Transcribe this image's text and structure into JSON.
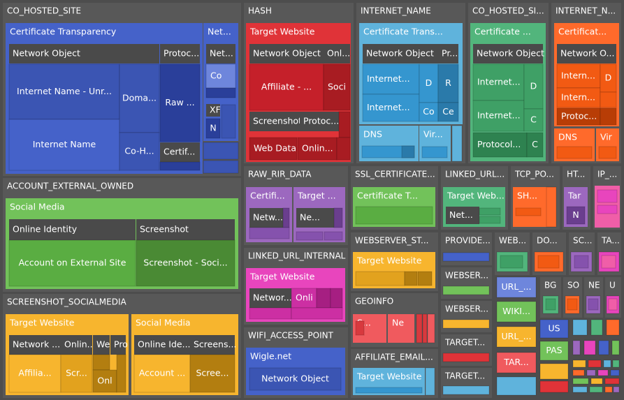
{
  "chart_data": {
    "type": "treemap",
    "colors": {
      "background": "#4d4d4d",
      "group": "#585858",
      "header": "#4a4a4a",
      "blue": "#4562c9",
      "blue_mid": "#3b55b3",
      "blue_dark": "#2a3f9a",
      "blue_light": "#6e86dc",
      "red": "#e03338",
      "red_mid": "#c5202a",
      "red_dark": "#a81c22",
      "cyan": "#5fb3dc",
      "cyan_mid": "#3596cf",
      "cyan_dark": "#2a7aaa",
      "green": "#52b57c",
      "green_mid": "#3fa066",
      "green_dark": "#2e8250",
      "orange": "#ff6a2b",
      "orange_mid": "#f25a13",
      "orange_dark": "#b83d06",
      "purple": "#9c68bf",
      "purple_mid": "#8552ad",
      "purple_dark": "#6a3e8e",
      "lime": "#72c25a",
      "lime_mid": "#5aad42",
      "lime_dark": "#4a8a34",
      "gold": "#f7b52e",
      "gold_mid": "#e2a21e",
      "gold_dark": "#b37e10",
      "magenta": "#e845bd",
      "magenta_mid": "#cc2fa3",
      "magenta_dark": "#a61f82",
      "salmon": "#f05a5e",
      "salmon_mid": "#d8393e",
      "pink": "#f05ea8",
      "text": "#ffffff"
    },
    "groups": [
      {
        "name": "CO_HOSTED_SITE",
        "children": [
          {
            "name": "Certificate Transparency",
            "children": [
              {
                "name": "Network Object",
                "children": [
                  {
                    "name": "Internet Name - Unr...",
                    "value": 48
                  },
                  {
                    "name": "Internet Name",
                    "value": 40
                  },
                  {
                    "name": "Doma...",
                    "value": 14
                  },
                  {
                    "name": "Co-H...",
                    "value": 11
                  }
                ]
              },
              {
                "name": "Protoc...",
                "children": [
                  {
                    "name": "Raw ...",
                    "value": 14
                  },
                  {
                    "name": "Certif...",
                    "value": 4
                  }
                ]
              }
            ]
          },
          {
            "name": "Net...",
            "children": [
              {
                "name": "Net...",
                "children": [
                  {
                    "name": "Co",
                    "value": 4
                  }
                ]
              },
              {
                "name": "XF",
                "children": [
                  {
                    "name": "N",
                    "value": 2
                  }
                ]
              }
            ]
          }
        ]
      },
      {
        "name": "HASH",
        "children": [
          {
            "name": "Target Website",
            "children": [
              {
                "name": "Network Object",
                "children": [
                  {
                    "name": "Affiliate - ...",
                    "value": 18
                  }
                ]
              },
              {
                "name": "Onl...",
                "children": [
                  {
                    "name": "Soci",
                    "value": 6
                  }
                ]
              },
              {
                "name": "Screenshot",
                "value": 3
              },
              {
                "name": "Protoc...",
                "value": 3
              },
              {
                "name": "Web Data",
                "value": 5
              },
              {
                "name": "Onlin...",
                "value": 4
              }
            ]
          }
        ]
      },
      {
        "name": "INTERNET_NAME",
        "children": [
          {
            "name": "Certificate Trans...",
            "children": [
              {
                "name": "Network Object",
                "children": [
                  {
                    "name": "Internet...",
                    "value": 9
                  },
                  {
                    "name": "Internet...",
                    "value": 8
                  },
                  {
                    "name": "D",
                    "value": 4
                  },
                  {
                    "name": "Co",
                    "value": 3
                  }
                ]
              },
              {
                "name": "Pr...",
                "children": [
                  {
                    "name": "R",
                    "value": 4
                  },
                  {
                    "name": "Ce",
                    "value": 2
                  }
                ]
              }
            ]
          },
          {
            "name": "DNS",
            "value": 6
          },
          {
            "name": "Vir...",
            "value": 3
          }
        ]
      },
      {
        "name": "CO_HOSTED_SI...",
        "children": [
          {
            "name": "Certificate ...",
            "children": [
              {
                "name": "Network Object",
                "children": [
                  {
                    "name": "Internet...",
                    "value": 10
                  },
                  {
                    "name": "Internet...",
                    "value": 9
                  },
                  {
                    "name": "D",
                    "value": 4
                  },
                  {
                    "name": "C",
                    "value": 3
                  }
                ]
              },
              {
                "name": "Protocol...",
                "value": 6
              },
              {
                "name": "C",
                "value": 2
              }
            ]
          }
        ]
      },
      {
        "name": "INTERNET_N...",
        "children": [
          {
            "name": "Certificat...",
            "children": [
              {
                "name": "Network O...",
                "children": [
                  {
                    "name": "Intern...",
                    "value": 4
                  },
                  {
                    "name": "Intern...",
                    "value": 4
                  },
                  {
                    "name": "D",
                    "value": 2
                  }
                ]
              },
              {
                "name": "Protoc...",
                "value": 3
              }
            ]
          },
          {
            "name": "DNS",
            "value": 3
          },
          {
            "name": "Vir",
            "value": 2
          }
        ]
      },
      {
        "name": "ACCOUNT_EXTERNAL_OWNED",
        "children": [
          {
            "name": "Social Media",
            "children": [
              {
                "name": "Online Identity",
                "children": [
                  {
                    "name": "Account on External Site",
                    "value": 30
                  }
                ]
              },
              {
                "name": "Screenshot",
                "children": [
                  {
                    "name": "Screenshot - Soci...",
                    "value": 30
                  }
                ]
              }
            ]
          }
        ]
      },
      {
        "name": "SCREENSHOT_SOCIALMEDIA",
        "children": [
          {
            "name": "Target Website",
            "children": [
              {
                "name": "Network ...",
                "children": [
                  {
                    "name": "Affilia...",
                    "value": 12
                  }
                ]
              },
              {
                "name": "Onlin...",
                "children": [
                  {
                    "name": "Scr...",
                    "value": 6
                  }
                ]
              },
              {
                "name": "We",
                "children": [
                  {
                    "name": "Onl",
                    "value": 3
                  }
                ]
              },
              {
                "name": "Pro",
                "value": 2
              }
            ]
          },
          {
            "name": "Social Media",
            "children": [
              {
                "name": "Online Ide...",
                "children": [
                  {
                    "name": "Account ...",
                    "value": 9
                  }
                ]
              },
              {
                "name": "Screens...",
                "children": [
                  {
                    "name": "Scree...",
                    "value": 8
                  }
                ]
              }
            ]
          }
        ]
      },
      {
        "name": "RAW_RIR_DATA",
        "children": [
          {
            "name": "Certifi...",
            "children": [
              {
                "name": "Netw...",
                "value": 4
              }
            ]
          },
          {
            "name": "Target ...",
            "children": [
              {
                "name": "Ne...",
                "value": 4
              }
            ]
          }
        ]
      },
      {
        "name": "LINKED_URL_INTERNAL",
        "children": [
          {
            "name": "Target Website",
            "children": [
              {
                "name": "Networ...",
                "value": 6
              },
              {
                "name": "Onli",
                "value": 4
              }
            ]
          }
        ]
      },
      {
        "name": "WIFI_ACCESS_POINT",
        "children": [
          {
            "name": "Wigle.net",
            "children": [
              {
                "name": "Network Object",
                "value": 6
              }
            ]
          }
        ]
      },
      {
        "name": "SSL_CERTIFICATE...",
        "children": [
          {
            "name": "Certificate T...",
            "value": 6
          }
        ]
      },
      {
        "name": "WEBSERVER_ST...",
        "children": [
          {
            "name": "Target Website",
            "value": 5
          }
        ]
      },
      {
        "name": "GEOINFO",
        "children": [
          {
            "name": "S...",
            "value": 2
          },
          {
            "name": "Ne",
            "value": 2
          }
        ]
      },
      {
        "name": "AFFILIATE_EMAIL...",
        "children": [
          {
            "name": "Target Website",
            "value": 3
          }
        ]
      },
      {
        "name": "LINKED_URL...",
        "children": [
          {
            "name": "Target Web...",
            "children": [
              {
                "name": "Net...",
                "value": 3
              }
            ]
          }
        ]
      },
      {
        "name": "TCP_PO...",
        "children": [
          {
            "name": "SH...",
            "value": 2
          }
        ]
      },
      {
        "name": "HT...",
        "children": [
          {
            "name": "Tar",
            "children": [
              {
                "name": "N",
                "value": 1
              }
            ]
          }
        ]
      },
      {
        "name": "IP_...",
        "value": 2
      },
      {
        "name": "PROVIDE...",
        "value": 1
      },
      {
        "name": "WEB...",
        "value": 1
      },
      {
        "name": "DO...",
        "value": 1
      },
      {
        "name": "SC...",
        "value": 1
      },
      {
        "name": "TA...",
        "value": 1
      },
      {
        "name": "WEBSER...",
        "value": 1
      },
      {
        "name": "WEBSER...",
        "value": 1
      },
      {
        "name": "TARGET...",
        "value": 1
      },
      {
        "name": "TARGET...",
        "value": 1
      },
      {
        "name": "URL_...",
        "value": 1
      },
      {
        "name": "WIKI...",
        "value": 1
      },
      {
        "name": "URL_...",
        "value": 1
      },
      {
        "name": "TAR...",
        "value": 1
      },
      {
        "name": "BG",
        "value": 1
      },
      {
        "name": "SO",
        "value": 1
      },
      {
        "name": "NE",
        "value": 1
      },
      {
        "name": "U",
        "value": 1
      },
      {
        "name": "US",
        "value": 1
      },
      {
        "name": "PAS",
        "value": 1
      }
    ]
  }
}
